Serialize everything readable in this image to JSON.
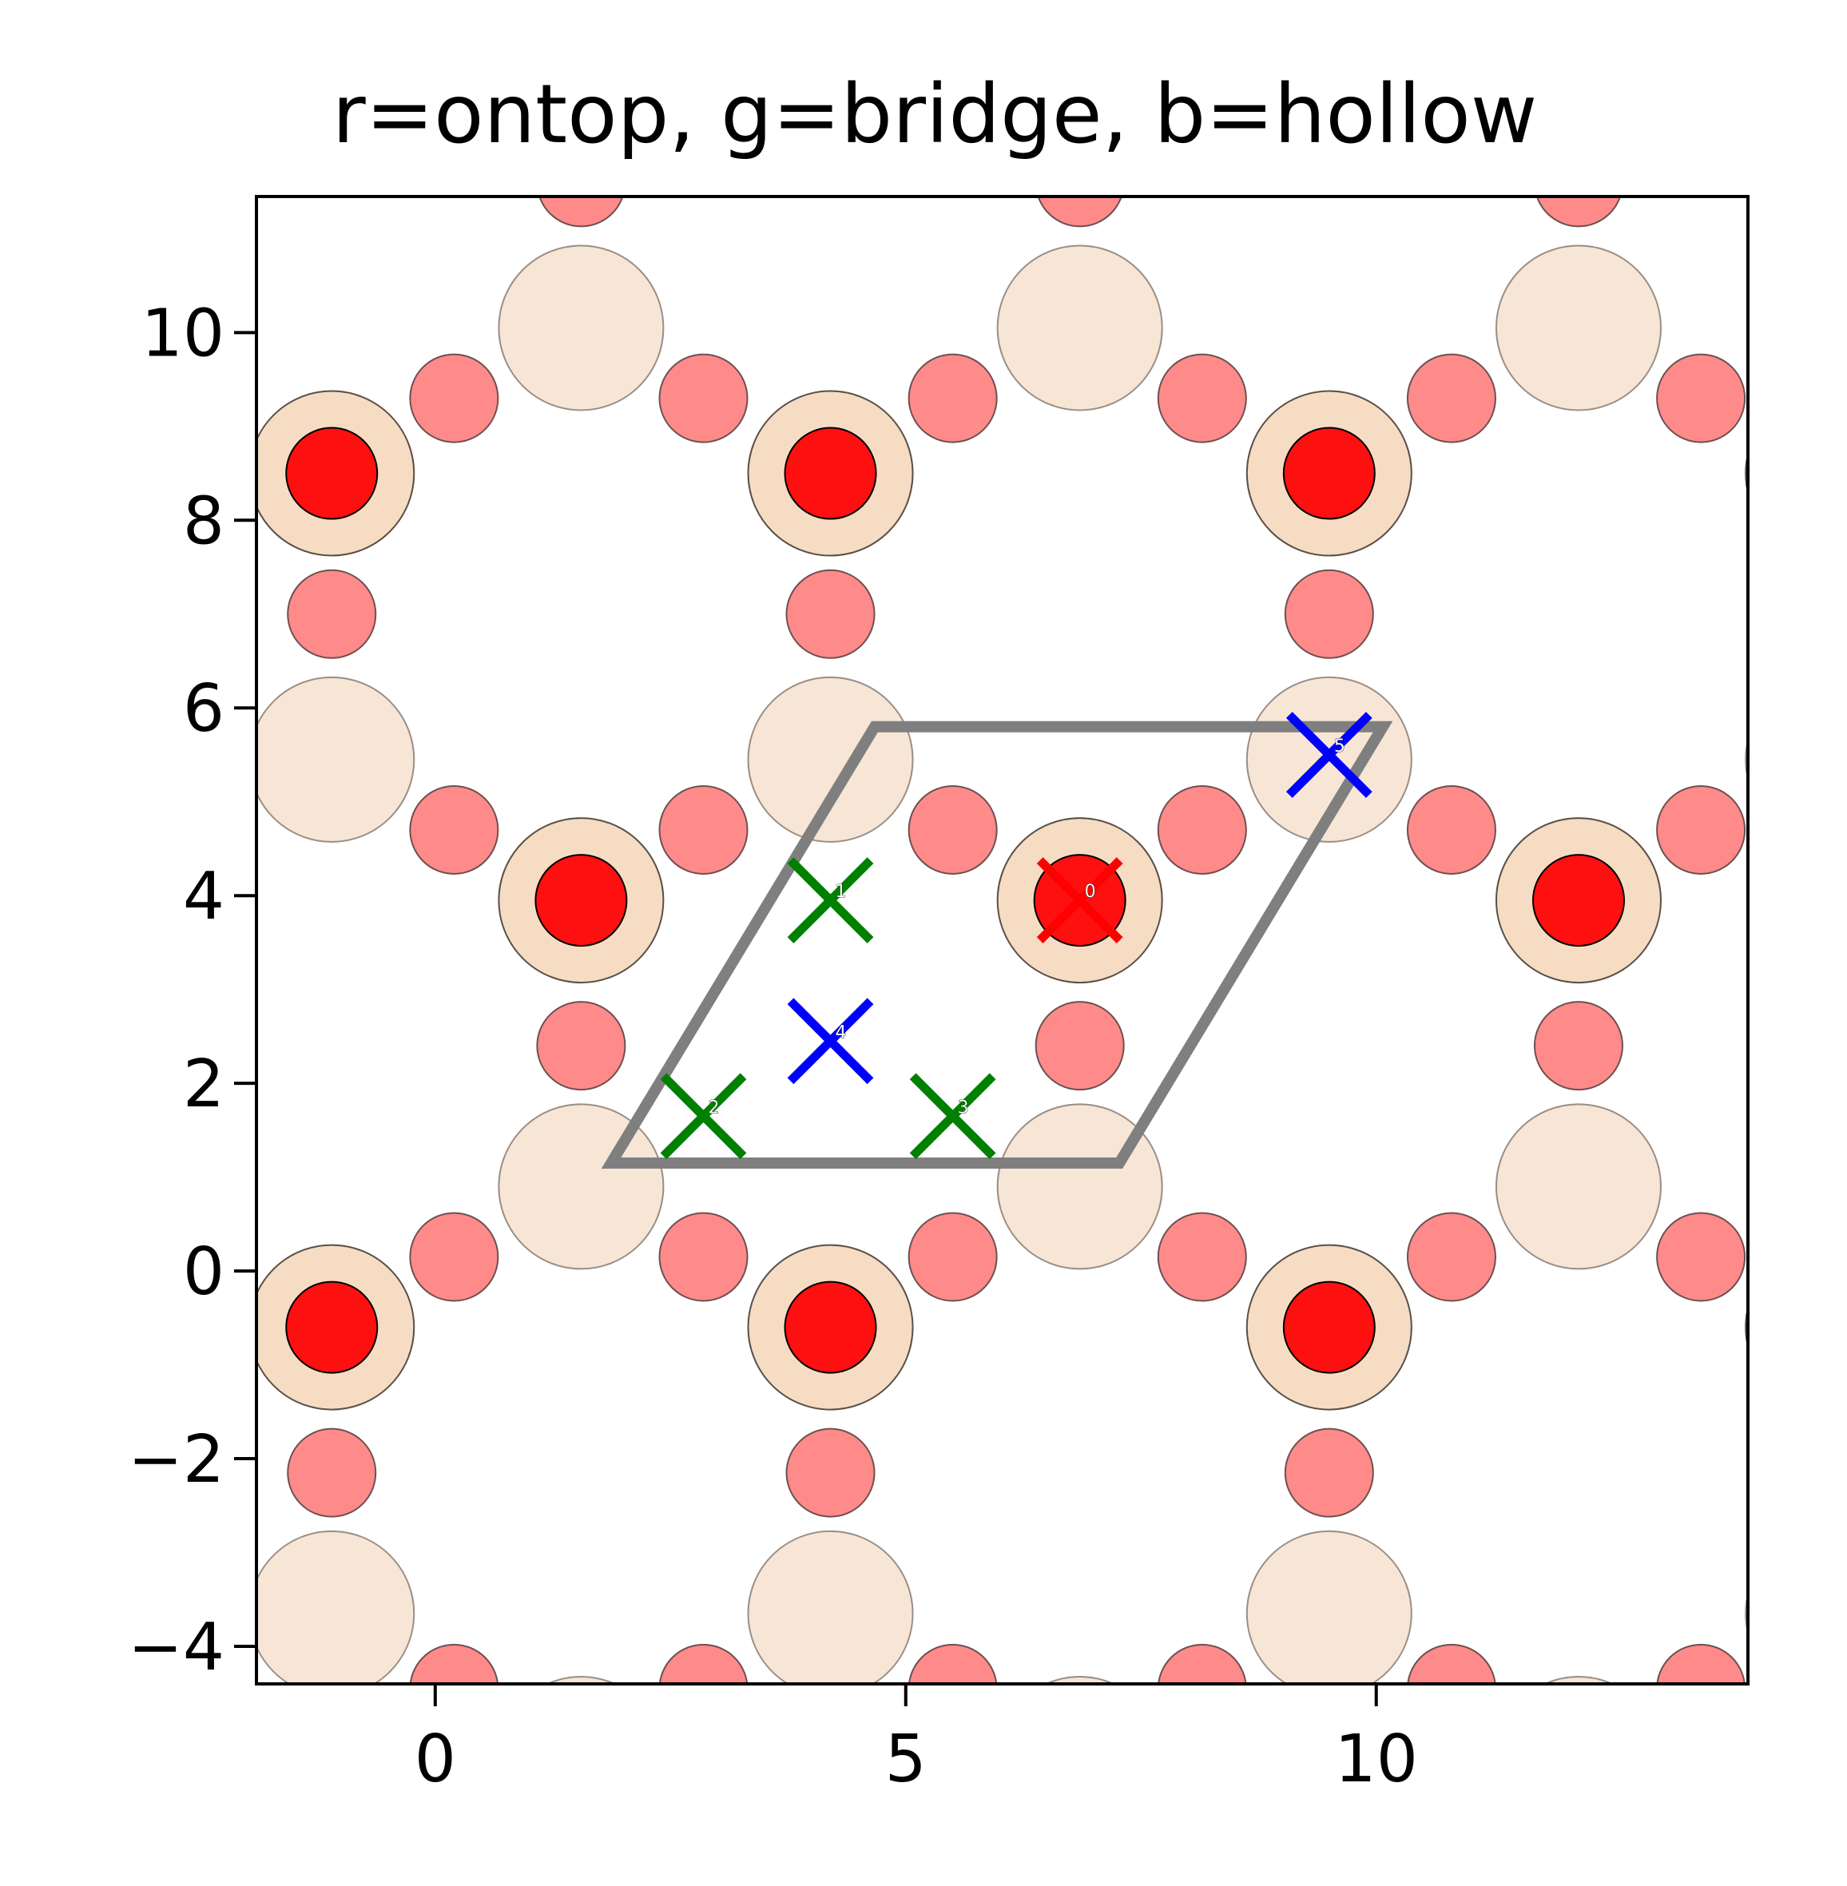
{
  "chart_data": {
    "type": "scatter",
    "title": "r=ontop, g=bridge, b=hollow",
    "xlabel": "",
    "ylabel": "",
    "xlim": [
      -1.9,
      13.95
    ],
    "ylim": [
      -4.4,
      11.45
    ],
    "x_ticks": [
      0,
      5,
      10
    ],
    "x_tick_labels": [
      "0",
      "5",
      "10"
    ],
    "y_ticks": [
      -4,
      -2,
      0,
      2,
      4,
      6,
      8,
      10
    ],
    "y_tick_labels": [
      "−4",
      "−2",
      "0",
      "2",
      "4",
      "6",
      "8",
      "10"
    ],
    "grid": false,
    "legend": "none",
    "colors": {
      "top_metal": "#ff1010",
      "oxygen": "#ff8a8a",
      "metal_subsurface": "#f5dcc3",
      "metal_deep": "#f7e6d6",
      "ontop": "#ff0000",
      "bridge": "#008000",
      "hollow": "#0000ff",
      "cell": "#7f7f7f"
    },
    "unit_cell": [
      [
        1.87,
        1.15
      ],
      [
        4.67,
        5.8
      ],
      [
        10.07,
        5.8
      ],
      [
        7.27,
        1.15
      ]
    ],
    "surface_atoms": {
      "top_metal": [
        [
          -1.1,
          8.5
        ],
        [
          4.2,
          8.5
        ],
        [
          9.5,
          8.5
        ],
        [
          1.55,
          3.95
        ],
        [
          6.85,
          3.95
        ],
        [
          12.15,
          3.95
        ],
        [
          -1.1,
          -0.6
        ],
        [
          4.2,
          -0.6
        ],
        [
          9.5,
          -0.6
        ]
      ],
      "oxygen": [
        [
          0.2,
          9.3
        ],
        [
          2.85,
          9.3
        ],
        [
          5.5,
          9.3
        ],
        [
          8.15,
          9.3
        ],
        [
          10.8,
          9.3
        ],
        [
          13.45,
          9.3
        ],
        [
          -1.1,
          7.0
        ],
        [
          4.2,
          7.0
        ],
        [
          9.5,
          7.0
        ],
        [
          0.2,
          4.7
        ],
        [
          2.85,
          4.7
        ],
        [
          5.5,
          4.7
        ],
        [
          8.15,
          4.7
        ],
        [
          10.8,
          4.7
        ],
        [
          13.45,
          4.7
        ],
        [
          1.55,
          2.4
        ],
        [
          6.85,
          2.4
        ],
        [
          12.15,
          2.4
        ],
        [
          0.2,
          0.15
        ],
        [
          2.85,
          0.15
        ],
        [
          5.5,
          0.15
        ],
        [
          8.15,
          0.15
        ],
        [
          10.8,
          0.15
        ],
        [
          13.45,
          0.15
        ],
        [
          -1.1,
          -2.15
        ],
        [
          4.2,
          -2.15
        ],
        [
          9.5,
          -2.15
        ],
        [
          0.2,
          -4.45
        ],
        [
          2.85,
          -4.45
        ],
        [
          5.5,
          -4.45
        ],
        [
          8.15,
          -4.45
        ],
        [
          10.8,
          -4.45
        ],
        [
          13.45,
          -4.45
        ],
        [
          1.55,
          11.6
        ],
        [
          6.85,
          11.6
        ],
        [
          12.15,
          11.6
        ]
      ],
      "metal_deep": [
        [
          1.55,
          10.05
        ],
        [
          6.85,
          10.05
        ],
        [
          12.15,
          10.05
        ],
        [
          -1.1,
          5.45
        ],
        [
          4.2,
          5.45
        ],
        [
          9.5,
          5.45
        ],
        [
          14.8,
          5.45
        ],
        [
          1.55,
          0.9
        ],
        [
          6.85,
          0.9
        ],
        [
          12.15,
          0.9
        ],
        [
          -1.1,
          -3.65
        ],
        [
          4.2,
          -3.65
        ],
        [
          9.5,
          -3.65
        ],
        [
          14.8,
          -3.65
        ],
        [
          1.55,
          -5.2
        ],
        [
          6.85,
          -5.2
        ],
        [
          12.15,
          -5.2
        ]
      ],
      "metal_subsurface_extra": [
        [
          14.8,
          8.5
        ],
        [
          14.8,
          -0.6
        ]
      ]
    },
    "sites": [
      {
        "label": "0",
        "kind": "ontop",
        "x": 6.85,
        "y": 3.95
      },
      {
        "label": "1",
        "kind": "bridge",
        "x": 4.2,
        "y": 3.95
      },
      {
        "label": "2",
        "kind": "bridge",
        "x": 2.85,
        "y": 1.65
      },
      {
        "label": "3",
        "kind": "bridge",
        "x": 5.5,
        "y": 1.65
      },
      {
        "label": "4",
        "kind": "hollow",
        "x": 4.2,
        "y": 2.45
      },
      {
        "label": "5",
        "kind": "hollow",
        "x": 9.5,
        "y": 5.5
      }
    ]
  }
}
